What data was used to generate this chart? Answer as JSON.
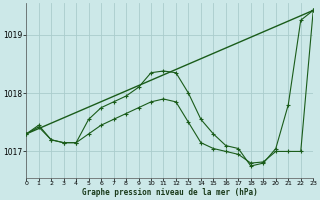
{
  "title": "Graphe pression niveau de la mer (hPa)",
  "bg_color": "#cce8e8",
  "grid_color": "#aacccc",
  "line_color": "#1a5c1a",
  "x_min": 0,
  "x_max": 23,
  "y_min": 1016.55,
  "y_max": 1019.55,
  "yticks": [
    1017,
    1018,
    1019
  ],
  "xticks": [
    0,
    1,
    2,
    3,
    4,
    5,
    6,
    7,
    8,
    9,
    10,
    11,
    12,
    13,
    14,
    15,
    16,
    17,
    18,
    19,
    20,
    21,
    22,
    23
  ],
  "line1_x": [
    0,
    1,
    2,
    3,
    4,
    5,
    6,
    7,
    8,
    9,
    10,
    11,
    12,
    13,
    14,
    15,
    16,
    17,
    18,
    19,
    20,
    21,
    22,
    23
  ],
  "line1_y": [
    1017.3,
    1017.45,
    1017.2,
    1017.15,
    1017.15,
    1017.55,
    1017.75,
    1017.85,
    1017.95,
    1018.1,
    1018.35,
    1018.38,
    1018.35,
    1018.0,
    1017.55,
    1017.3,
    1017.1,
    1017.05,
    1016.75,
    1016.8,
    1017.05,
    1017.8,
    1019.25,
    1019.42
  ],
  "line2_x": [
    0,
    1,
    2,
    3,
    4,
    5,
    6,
    7,
    8,
    9,
    10,
    11,
    12,
    13,
    14,
    15,
    16,
    17,
    18,
    19,
    20,
    21,
    22,
    23
  ],
  "line2_y": [
    1017.3,
    1017.42,
    1017.2,
    1017.15,
    1017.15,
    1017.3,
    1017.45,
    1017.55,
    1017.65,
    1017.75,
    1017.85,
    1017.9,
    1017.85,
    1017.5,
    1017.15,
    1017.05,
    1017.0,
    1016.95,
    1016.8,
    1016.82,
    1017.0,
    1017.0,
    1017.0,
    1019.42
  ],
  "line3_x": [
    0,
    23
  ],
  "line3_y": [
    1017.3,
    1019.42
  ]
}
